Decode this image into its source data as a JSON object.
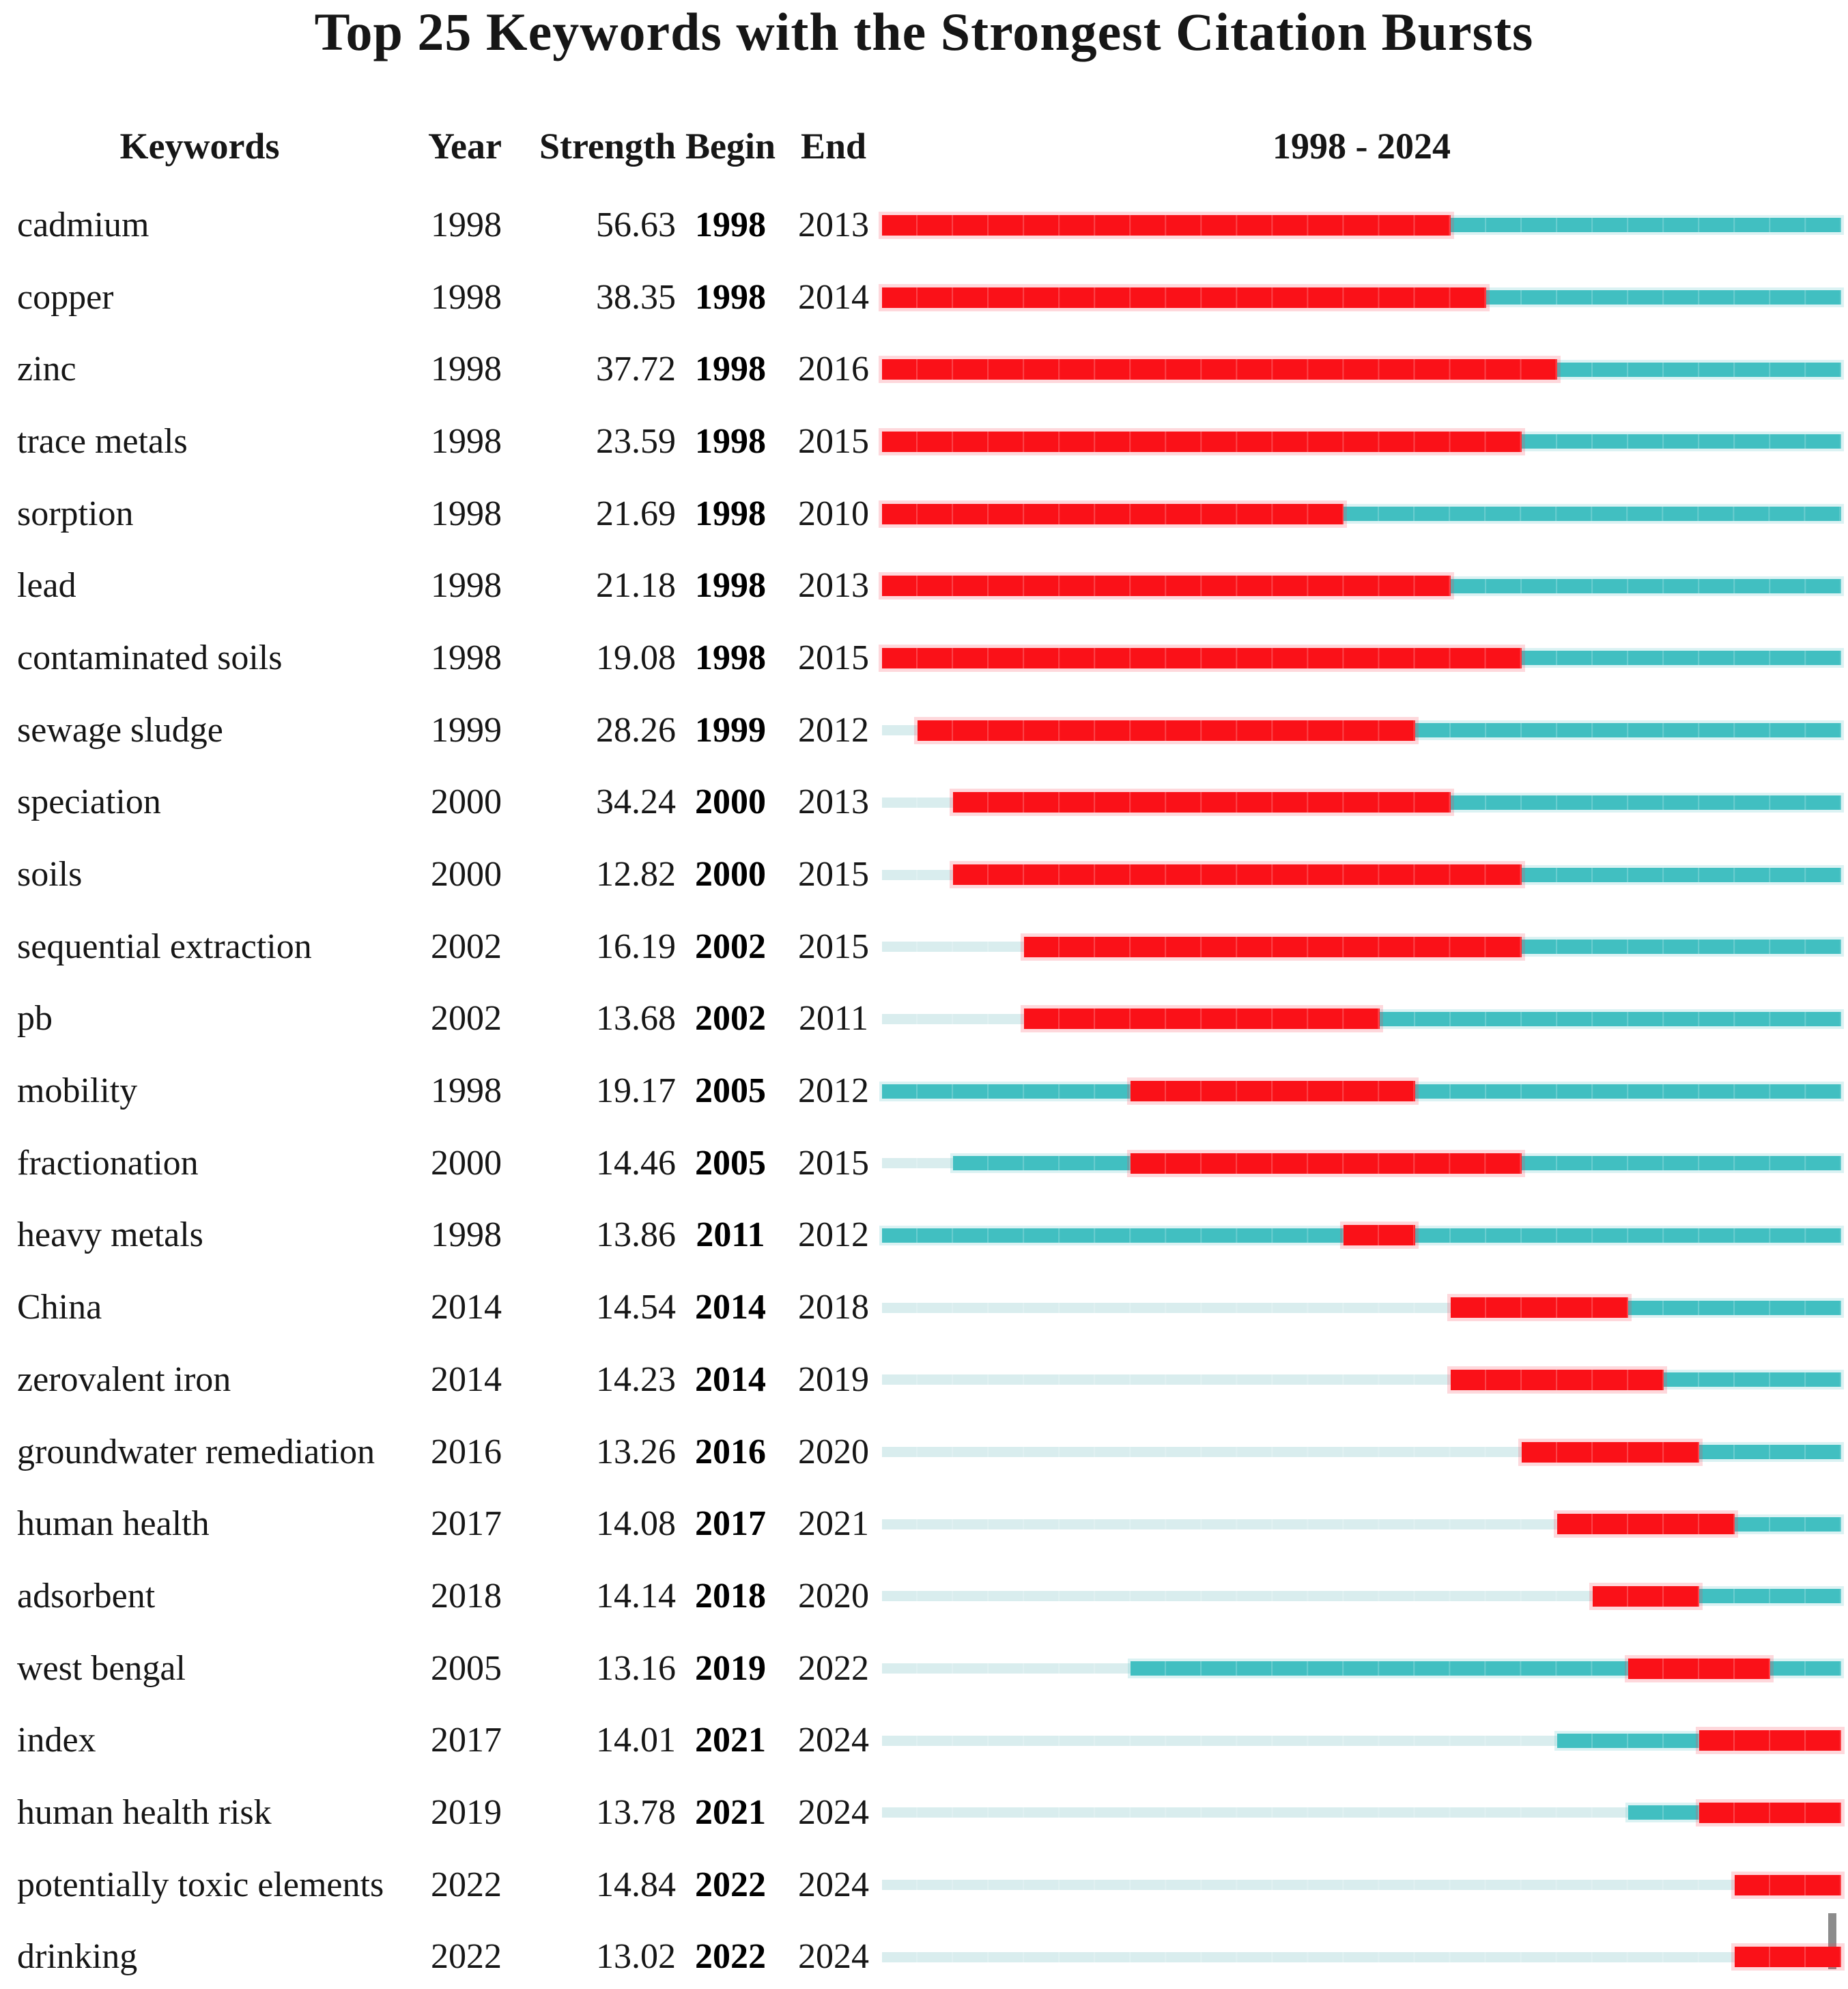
{
  "chart_data": {
    "type": "table",
    "title": "Top 25 Keywords with the Strongest Citation Bursts",
    "column_headers": {
      "keyword": "Keywords",
      "year": "Year",
      "strength": "Strength",
      "begin": "Begin",
      "end": "End"
    },
    "timeline_header": "1998 - 2024",
    "timeline_range": [
      1998,
      2024
    ],
    "legend_note": "red segment = citation burst period, teal segment = keyword active years, pale segment = years before first appearance",
    "colors": {
      "burst_red": "#fa1118",
      "timeline_teal": "#41bfc1",
      "pre_appearance_pale": "#d9edee",
      "end_tick_gray": "#8c8c8c",
      "text_black": "#161616"
    },
    "rows": [
      {
        "keyword": "cadmium",
        "year": 1998,
        "strength": "56.63",
        "begin": 1998,
        "end": 2013
      },
      {
        "keyword": "copper",
        "year": 1998,
        "strength": "38.35",
        "begin": 1998,
        "end": 2014
      },
      {
        "keyword": "zinc",
        "year": 1998,
        "strength": "37.72",
        "begin": 1998,
        "end": 2016
      },
      {
        "keyword": "trace metals",
        "year": 1998,
        "strength": "23.59",
        "begin": 1998,
        "end": 2015
      },
      {
        "keyword": "sorption",
        "year": 1998,
        "strength": "21.69",
        "begin": 1998,
        "end": 2010
      },
      {
        "keyword": "lead",
        "year": 1998,
        "strength": "21.18",
        "begin": 1998,
        "end": 2013
      },
      {
        "keyword": "contaminated soils",
        "year": 1998,
        "strength": "19.08",
        "begin": 1998,
        "end": 2015
      },
      {
        "keyword": "sewage sludge",
        "year": 1999,
        "strength": "28.26",
        "begin": 1999,
        "end": 2012
      },
      {
        "keyword": "speciation",
        "year": 2000,
        "strength": "34.24",
        "begin": 2000,
        "end": 2013
      },
      {
        "keyword": "soils",
        "year": 2000,
        "strength": "12.82",
        "begin": 2000,
        "end": 2015
      },
      {
        "keyword": "sequential extraction",
        "year": 2002,
        "strength": "16.19",
        "begin": 2002,
        "end": 2015
      },
      {
        "keyword": "pb",
        "year": 2002,
        "strength": "13.68",
        "begin": 2002,
        "end": 2011
      },
      {
        "keyword": "mobility",
        "year": 1998,
        "strength": "19.17",
        "begin": 2005,
        "end": 2012
      },
      {
        "keyword": "fractionation",
        "year": 2000,
        "strength": "14.46",
        "begin": 2005,
        "end": 2015
      },
      {
        "keyword": "heavy metals",
        "year": 1998,
        "strength": "13.86",
        "begin": 2011,
        "end": 2012
      },
      {
        "keyword": "China",
        "year": 2014,
        "strength": "14.54",
        "begin": 2014,
        "end": 2018
      },
      {
        "keyword": "zerovalent iron",
        "year": 2014,
        "strength": "14.23",
        "begin": 2014,
        "end": 2019
      },
      {
        "keyword": "groundwater remediation",
        "year": 2016,
        "strength": "13.26",
        "begin": 2016,
        "end": 2020
      },
      {
        "keyword": "human health",
        "year": 2017,
        "strength": "14.08",
        "begin": 2017,
        "end": 2021
      },
      {
        "keyword": "adsorbent",
        "year": 2018,
        "strength": "14.14",
        "begin": 2018,
        "end": 2020
      },
      {
        "keyword": "west bengal",
        "year": 2005,
        "strength": "13.16",
        "begin": 2019,
        "end": 2022
      },
      {
        "keyword": "index",
        "year": 2017,
        "strength": "14.01",
        "begin": 2021,
        "end": 2024
      },
      {
        "keyword": "human health risk",
        "year": 2019,
        "strength": "13.78",
        "begin": 2021,
        "end": 2024
      },
      {
        "keyword": "potentially toxic elements",
        "year": 2022,
        "strength": "14.84",
        "begin": 2022,
        "end": 2024
      },
      {
        "keyword": "drinking",
        "year": 2022,
        "strength": "13.02",
        "begin": 2022,
        "end": 2024
      }
    ]
  }
}
